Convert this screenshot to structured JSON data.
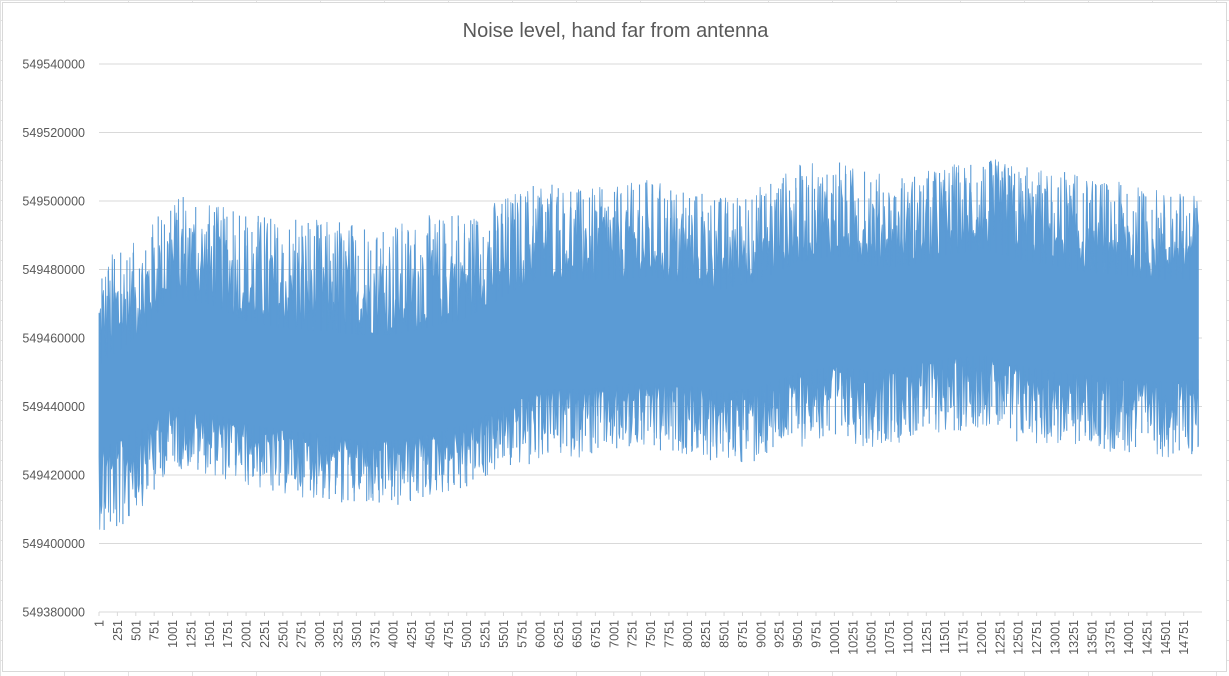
{
  "chart_data": {
    "type": "area",
    "title": "Noise level, hand far from antenna",
    "xlabel": "",
    "ylabel": "",
    "ylim": [
      549380000,
      549540000
    ],
    "y_ticks": [
      549380000,
      549400000,
      549420000,
      549440000,
      549460000,
      549480000,
      549500000,
      549520000,
      549540000
    ],
    "xlim": [
      1,
      15000
    ],
    "x_tick_labels": [
      "1",
      "251",
      "501",
      "751",
      "1001",
      "1251",
      "1501",
      "1751",
      "2001",
      "2251",
      "2501",
      "2751",
      "3001",
      "3251",
      "3501",
      "3751",
      "4001",
      "4251",
      "4501",
      "4751",
      "5001",
      "5251",
      "5501",
      "5751",
      "6001",
      "6251",
      "6501",
      "6751",
      "7001",
      "7251",
      "7501",
      "7751",
      "8001",
      "8251",
      "8501",
      "8751",
      "9001",
      "9251",
      "9501",
      "9751",
      "10001",
      "10251",
      "10501",
      "10751",
      "11001",
      "11251",
      "11501",
      "11751",
      "12001",
      "12251",
      "12501",
      "12751",
      "13001",
      "13251",
      "13501",
      "13751",
      "14001",
      "14251",
      "14501",
      "14751"
    ],
    "series": [
      {
        "color": "#5b9bd5",
        "envelope_x": [
          1,
          250,
          500,
          750,
          1000,
          1500,
          2000,
          2500,
          3000,
          3500,
          4000,
          4500,
          5000,
          5500,
          6000,
          6500,
          7000,
          7500,
          8000,
          8500,
          9000,
          9500,
          10000,
          10500,
          11000,
          11500,
          12000,
          12500,
          13000,
          13500,
          14000,
          14500,
          14951
        ],
        "envelope_max": [
          549482000,
          549487000,
          549488000,
          549495000,
          549502000,
          549500000,
          549496000,
          549495000,
          549495000,
          549494000,
          549494000,
          549496000,
          549497000,
          549502000,
          549507000,
          549504000,
          549504000,
          549507000,
          549503000,
          549502000,
          549505000,
          549511000,
          549512000,
          549509000,
          549507000,
          549511000,
          549513000,
          549511000,
          549509000,
          549507000,
          549505000,
          549504000,
          549502000
        ],
        "envelope_min": [
          549404000,
          549403000,
          549408000,
          549416000,
          549422000,
          549420000,
          549416000,
          549414000,
          549413000,
          549411000,
          549410000,
          549413000,
          549416000,
          549421000,
          549424000,
          549425000,
          549426000,
          549426000,
          549426000,
          549423000,
          549424000,
          549428000,
          549430000,
          549428000,
          549430000,
          549432000,
          549434000,
          549429000,
          549428000,
          549427000,
          549426000,
          549425000,
          549426000
        ],
        "dense_min": [
          549428000,
          549430000,
          549433000,
          549436000,
          549440000,
          549438000,
          549435000,
          549433000,
          549432000,
          549430000,
          549430000,
          549432000,
          549435000,
          549440000,
          549445000,
          549445000,
          549446000,
          549447000,
          549446000,
          549444000,
          549446000,
          549450000,
          549452000,
          549450000,
          549452000,
          549454000,
          549455000,
          549452000,
          549450000,
          549449000,
          549448000,
          549447000,
          549448000
        ],
        "dense_max": [
          549452000,
          549456000,
          549460000,
          549466000,
          549472000,
          549470000,
          549465000,
          549463000,
          549462000,
          549461000,
          549461000,
          549463000,
          549466000,
          549472000,
          549478000,
          549477000,
          549477000,
          549478000,
          549476000,
          549474000,
          549477000,
          549482000,
          549484000,
          549481000,
          549481000,
          549484000,
          549486000,
          549483000,
          549481000,
          549479000,
          549478000,
          549477000,
          549477000
        ]
      }
    ]
  }
}
